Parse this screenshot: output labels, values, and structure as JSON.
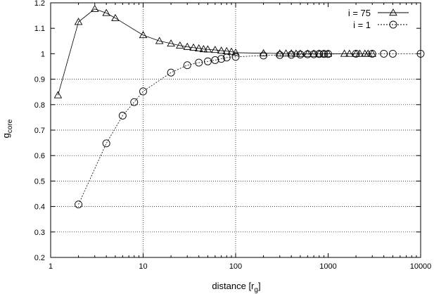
{
  "chart_data": {
    "type": "scatter",
    "x_scale": "log",
    "xlim": [
      1,
      10000
    ],
    "ylim": [
      0.2,
      1.2
    ],
    "xlabel": {
      "main": "distance [r",
      "sub": "g",
      "end": "]"
    },
    "ylabel": {
      "main": "g",
      "sub": "core"
    },
    "x_ticks": [
      {
        "value": 1,
        "label": "1"
      },
      {
        "value": 10,
        "label": "10"
      },
      {
        "value": 100,
        "label": "100"
      },
      {
        "value": 1000,
        "label": "1000"
      },
      {
        "value": 10000,
        "label": "10000"
      }
    ],
    "y_ticks": [
      {
        "value": 0.2,
        "label": "0.2"
      },
      {
        "value": 0.3,
        "label": "0.3"
      },
      {
        "value": 0.4,
        "label": "0.4"
      },
      {
        "value": 0.5,
        "label": "0.5"
      },
      {
        "value": 0.6,
        "label": "0.6"
      },
      {
        "value": 0.7,
        "label": "0.7"
      },
      {
        "value": 0.8,
        "label": "0.8"
      },
      {
        "value": 0.9,
        "label": "0.9"
      },
      {
        "value": 1,
        "label": "1"
      },
      {
        "value": 1.1,
        "label": "1.1"
      },
      {
        "value": 1.2,
        "label": "1.2"
      }
    ],
    "grid": {
      "vertical_at": [
        10,
        100
      ],
      "horizontal_at": [
        0.3,
        0.4,
        0.5,
        0.6,
        0.7,
        0.8,
        0.9
      ]
    },
    "legend_position": "top-right",
    "series": [
      {
        "name": "i = 75",
        "marker": "triangle",
        "x": [
          1.2,
          2,
          3,
          4,
          5,
          10,
          15,
          20,
          25,
          30,
          35,
          40,
          45,
          50,
          60,
          70,
          80,
          90,
          100,
          200,
          300,
          350,
          400,
          450,
          500,
          600,
          700,
          800,
          900,
          1000,
          1500,
          1700,
          2000,
          2200,
          2500,
          2700,
          3000
        ],
        "y": [
          0.837,
          1.125,
          1.176,
          1.16,
          1.14,
          1.073,
          1.05,
          1.04,
          1.032,
          1.027,
          1.024,
          1.021,
          1.018,
          1.017,
          1.015,
          1.012,
          1.01,
          1.008,
          1.004,
          1.002,
          1.001,
          1.001,
          1.001,
          1.0,
          1.0,
          1.0,
          1.0,
          1.0,
          1.0,
          1.0,
          1.0,
          1.0,
          1.0,
          1.0,
          1.0,
          1.0,
          1.0
        ]
      },
      {
        "name": "i = 1",
        "marker": "circle",
        "x": [
          2,
          4,
          6,
          8,
          10,
          20,
          30,
          40,
          50,
          60,
          70,
          80,
          100,
          200,
          300,
          400,
          500,
          600,
          700,
          800,
          900,
          1000,
          2000,
          3000,
          4000,
          5000,
          10000
        ],
        "y": [
          0.408,
          0.648,
          0.757,
          0.81,
          0.852,
          0.926,
          0.955,
          0.965,
          0.97,
          0.975,
          0.98,
          0.985,
          0.988,
          0.993,
          0.995,
          0.996,
          0.997,
          0.998,
          0.998,
          0.999,
          0.999,
          0.999,
          1.0,
          1.0,
          1.0,
          1.0,
          1.0
        ]
      }
    ]
  }
}
